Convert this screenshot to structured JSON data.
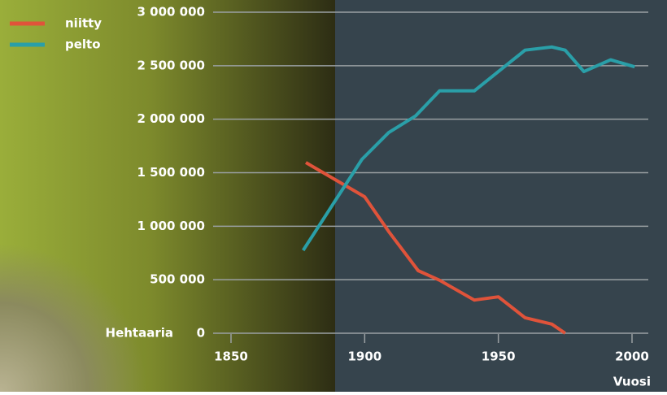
{
  "chart_data": {
    "type": "line",
    "xlabel": "Vuosi",
    "ylabel": "Hehtaaria",
    "series": [
      {
        "name": "niitty",
        "color": "#e0533a",
        "x": [
          1878,
          1900,
          1909,
          1920,
          1928,
          1941,
          1950,
          1960,
          1970,
          1975
        ],
        "values": [
          1595000,
          1275000,
          950000,
          585000,
          495000,
          310000,
          340000,
          145000,
          85000,
          0
        ]
      },
      {
        "name": "pelto",
        "color": "#2a9fa8",
        "x": [
          1877,
          1899,
          1909,
          1919,
          1928,
          1941,
          1960,
          1970,
          1975,
          1982,
          1992,
          2001
        ],
        "values": [
          775000,
          1625000,
          1875000,
          2030000,
          2265000,
          2265000,
          2645000,
          2675000,
          2645000,
          2445000,
          2555000,
          2490000
        ]
      }
    ],
    "xlim": [
      1850,
      2000
    ],
    "xticks": [
      1850,
      1900,
      1950,
      2000
    ],
    "ylim": [
      0,
      3000000
    ],
    "yticks": [
      0,
      {
        "value": 500000,
        "label": "500 000"
      },
      {
        "value": 1000000,
        "label": "1 000 000"
      },
      {
        "value": 1500000,
        "label": "1 500 000"
      },
      {
        "value": 2000000,
        "label": "2 000 000"
      },
      {
        "value": 2500000,
        "label": "2 500 000"
      },
      {
        "value": 3000000,
        "label": "3 000 000"
      }
    ],
    "grid": true,
    "legend": "upper left"
  }
}
